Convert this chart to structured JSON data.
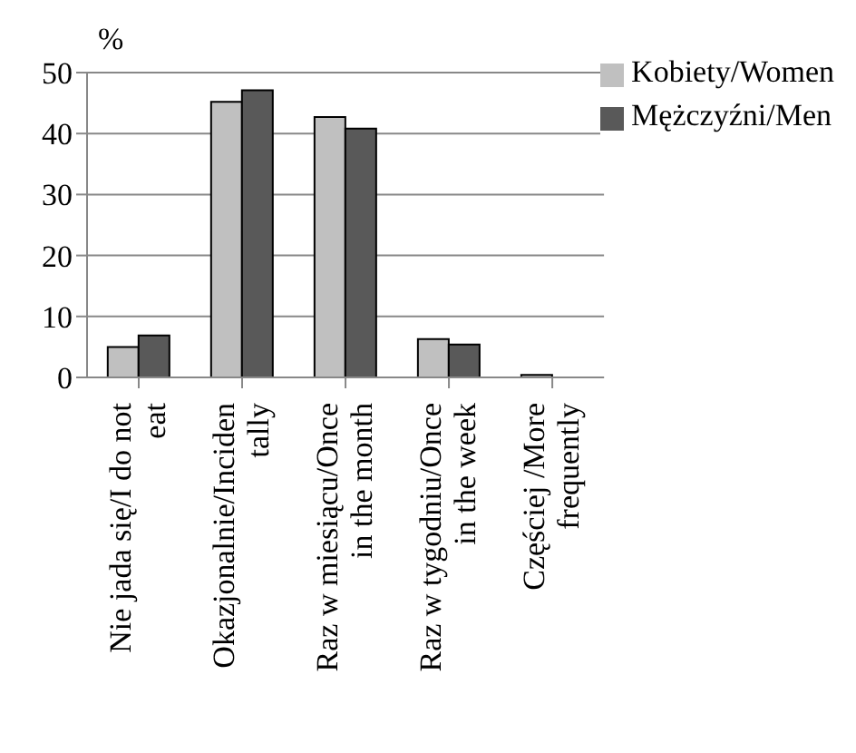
{
  "chart_data": {
    "type": "bar",
    "ylabel": "%",
    "categories": [
      "Nie jada się/I do not\neat",
      "Okazjonalnie/Inciden\ntally",
      "Raz w miesiącu/Once\nin the month",
      "Raz w tygodniu/Once\nin the week",
      "Częściej /More\nfrequently"
    ],
    "series": [
      {
        "name": "Kobiety/Women",
        "color": "#c0c0c0",
        "values": [
          5,
          45.2,
          42.7,
          6.3,
          0.4
        ]
      },
      {
        "name": "Mężczyźni/Men",
        "color": "#595959",
        "values": [
          6.9,
          47.1,
          40.8,
          5.4,
          0
        ]
      }
    ],
    "ylim": [
      0,
      50
    ],
    "yticks": [
      0,
      10,
      20,
      30,
      40,
      50
    ],
    "grid": "y",
    "legend": "top right"
  }
}
